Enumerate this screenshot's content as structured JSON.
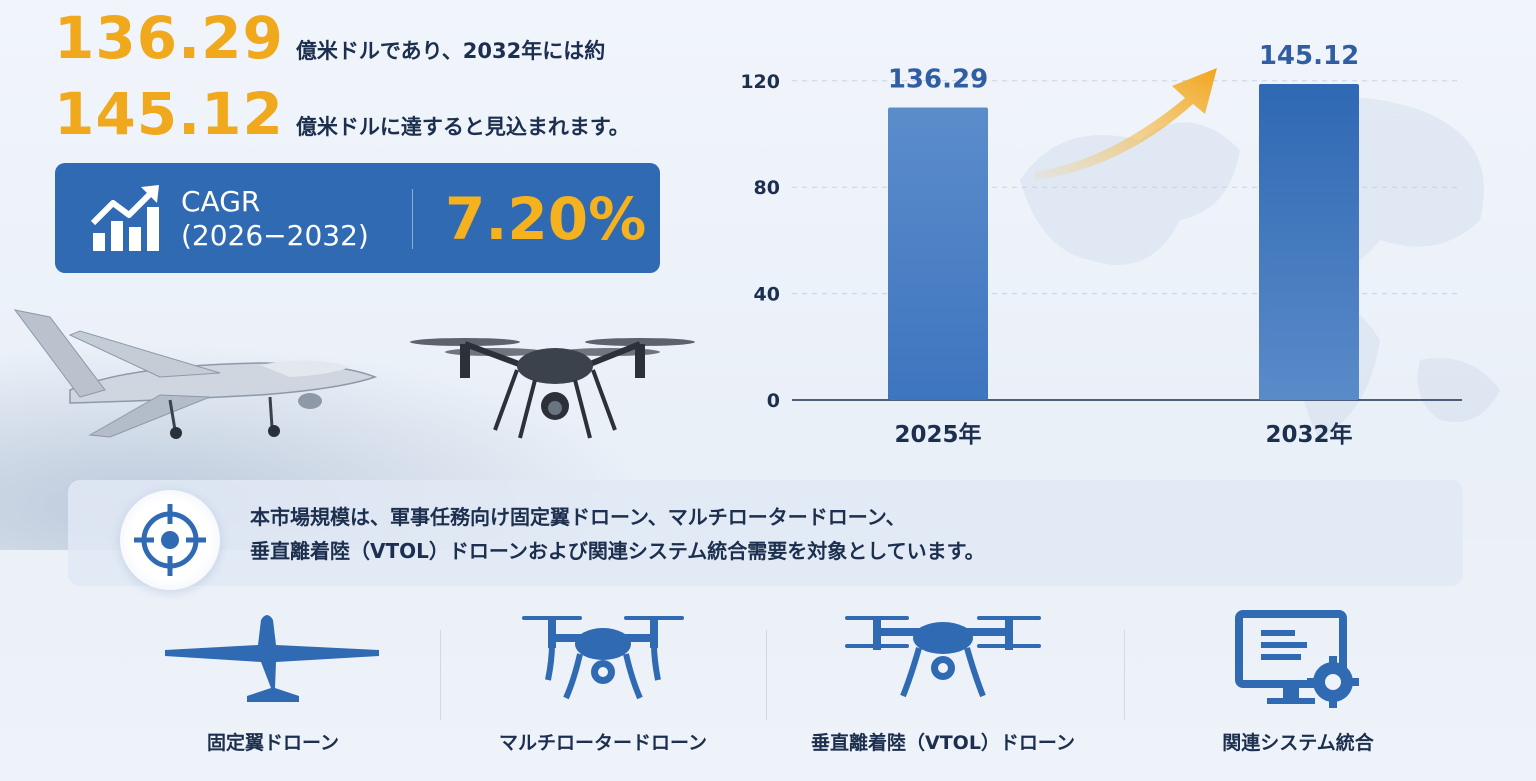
{
  "headline": {
    "value_2025": "136.29",
    "text_1": "億米ドルであり、2032年には約",
    "value_2032": "145.12",
    "text_2": "億米ドルに達すると見込まれます。"
  },
  "cagr": {
    "label_line1": "CAGR",
    "label_line2": "(2026−2032)",
    "value": "7.20%"
  },
  "scope": {
    "line1": "本市場規模は、軍事任務向け固定翼ドローン、マルチロータードローン、",
    "line2": "垂直離着陸（VTOL）ドローンおよび関連システム統合需要を対象としています。"
  },
  "categories": [
    {
      "label": "固定翼ドローン",
      "icon": "fixed-wing-drone-icon"
    },
    {
      "label": "マルチロータードローン",
      "icon": "multirotor-drone-icon"
    },
    {
      "label": "垂直離着陸（VTOL）ドローン",
      "icon": "vtol-drone-icon"
    },
    {
      "label": "関連システム統合",
      "icon": "system-integration-icon"
    }
  ],
  "colors": {
    "accent_orange": "#f0a81c",
    "brand_blue": "#2f6ab3",
    "bar_blue": "#4a80c4",
    "text_dark": "#1c2f4e"
  },
  "chart_data": {
    "type": "bar",
    "categories": [
      "2025年",
      "2032年"
    ],
    "values": [
      136.29,
      145.12
    ],
    "value_labels": [
      "136.29",
      "145.12"
    ],
    "yticks": [
      0,
      40,
      80,
      120
    ],
    "ylim": [
      0,
      150
    ],
    "grid": true,
    "title": "",
    "xlabel": "",
    "ylabel": ""
  }
}
